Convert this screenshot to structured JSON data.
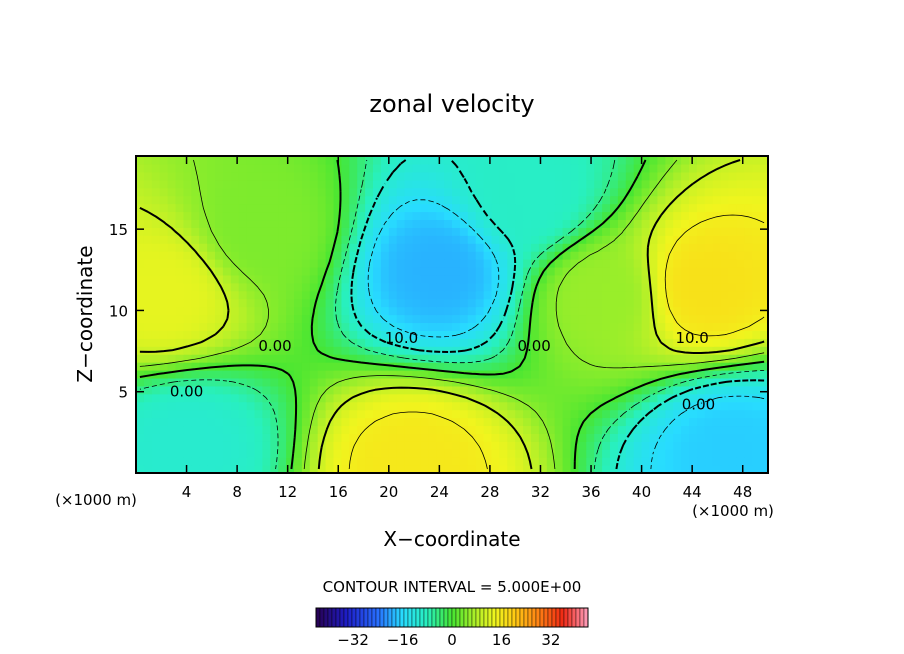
{
  "chart_data": {
    "type": "heatmap",
    "title": "zonal velocity",
    "xlabel": "X−coordinate",
    "ylabel": "Z−coordinate",
    "xlim": [
      0,
      50
    ],
    "ylim": [
      0,
      19.5
    ],
    "x_ticks": [
      4,
      8,
      12,
      16,
      20,
      24,
      28,
      32,
      36,
      40,
      44,
      48
    ],
    "x_tick_labels": [
      "4",
      "8",
      "12",
      "16",
      "20",
      "24",
      "28",
      "32",
      "36",
      "40",
      "44",
      "48"
    ],
    "y_ticks": [
      5,
      10,
      15
    ],
    "y_tick_labels": [
      "5",
      "10",
      "15"
    ],
    "x_unit_left": "(×1000 m)",
    "x_unit_right": "(×1000 m)",
    "contour_interval_text": "CONTOUR INTERVAL = 5.000E+00",
    "contour_labels": [
      {
        "text": "0.00",
        "x": 4,
        "y": 5
      },
      {
        "text": "0.00",
        "x": 11,
        "y": 7.8
      },
      {
        "text": "10.0",
        "x": 21,
        "y": 8.3
      },
      {
        "text": "0.00",
        "x": 31.5,
        "y": 7.8
      },
      {
        "text": "10.0",
        "x": 44,
        "y": 8.3
      },
      {
        "text": "0.00",
        "x": 44.5,
        "y": 4.2
      }
    ],
    "colorbar": {
      "range": [
        -44,
        44
      ],
      "tick_values": [
        -32,
        -16,
        0,
        16,
        32
      ],
      "tick_labels": [
        "−32",
        "−16",
        "0",
        "16",
        "32"
      ]
    },
    "field_centers": [
      {
        "x": 24,
        "y": 12.5,
        "value": -19
      },
      {
        "x": 31,
        "y": 17,
        "value": -9
      },
      {
        "x": 47,
        "y": 1.5,
        "value": -17
      },
      {
        "x": 4,
        "y": 1.8,
        "value": -10
      },
      {
        "x": 45,
        "y": 11.5,
        "value": 17
      },
      {
        "x": 2,
        "y": 11,
        "value": 13
      },
      {
        "x": 22,
        "y": 0.5,
        "value": 16
      },
      {
        "x": 37,
        "y": 11,
        "value": 6
      },
      {
        "x": 10,
        "y": 15,
        "value": 4
      }
    ]
  }
}
